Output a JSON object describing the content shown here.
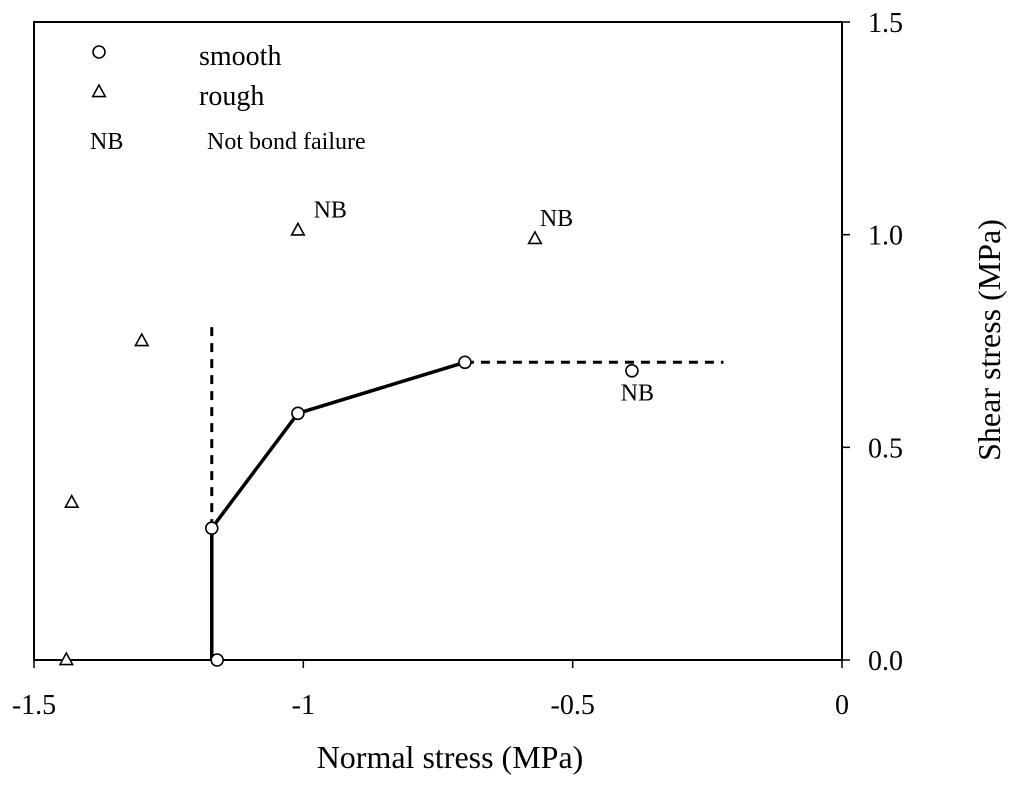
{
  "chart_data": {
    "type": "scatter",
    "title": "",
    "xlabel": "Normal stress (MPa)",
    "ylabel": "Shear stress (MPa)",
    "xlim": [
      -1.5,
      0
    ],
    "ylim": [
      0,
      1.5
    ],
    "x_ticks": [
      -1.5,
      -1,
      -0.5,
      0
    ],
    "x_tick_labels": [
      "-1.5",
      "-1",
      "-0.5",
      "0"
    ],
    "y_ticks": [
      0,
      0.5,
      1.0,
      1.5
    ],
    "y_tick_labels": [
      "0.0",
      "0.5",
      "1.0",
      "1.5"
    ],
    "y_axis_side": "right",
    "grid": false,
    "legend": {
      "placement": "top-left",
      "entries": [
        {
          "marker": "circle",
          "label": "smooth"
        },
        {
          "marker": "triangle",
          "label": "rough"
        },
        {
          "marker": "NB",
          "label": "Not bond failure"
        }
      ]
    },
    "series": [
      {
        "name": "smooth",
        "marker": "circle",
        "points": [
          {
            "x": -1.16,
            "y": 0.0
          },
          {
            "x": -1.17,
            "y": 0.31
          },
          {
            "x": -1.01,
            "y": 0.58
          },
          {
            "x": -0.7,
            "y": 0.7
          },
          {
            "x": -0.39,
            "y": 0.68
          }
        ]
      },
      {
        "name": "rough",
        "marker": "triangle",
        "points": [
          {
            "x": -1.44,
            "y": 0.0
          },
          {
            "x": -1.43,
            "y": 0.37
          },
          {
            "x": -1.3,
            "y": 0.75
          },
          {
            "x": -1.01,
            "y": 1.01
          },
          {
            "x": -0.57,
            "y": 0.99
          }
        ]
      }
    ],
    "annotations": [
      {
        "text": "NB",
        "x": -0.95,
        "y": 1.04
      },
      {
        "text": "NB",
        "x": -0.53,
        "y": 1.02
      },
      {
        "text": "NB",
        "x": -0.38,
        "y": 0.61
      }
    ],
    "failure_envelope": {
      "solid": [
        [
          -1.17,
          0.0
        ],
        [
          -1.17,
          0.31
        ],
        [
          -1.01,
          0.58
        ],
        [
          -0.7,
          0.7
        ]
      ],
      "dashed_vertical": [
        [
          -1.17,
          0.31
        ],
        [
          -1.17,
          0.79
        ]
      ],
      "dashed_horizontal": [
        [
          -0.7,
          0.7
        ],
        [
          -0.22,
          0.7
        ]
      ]
    }
  }
}
